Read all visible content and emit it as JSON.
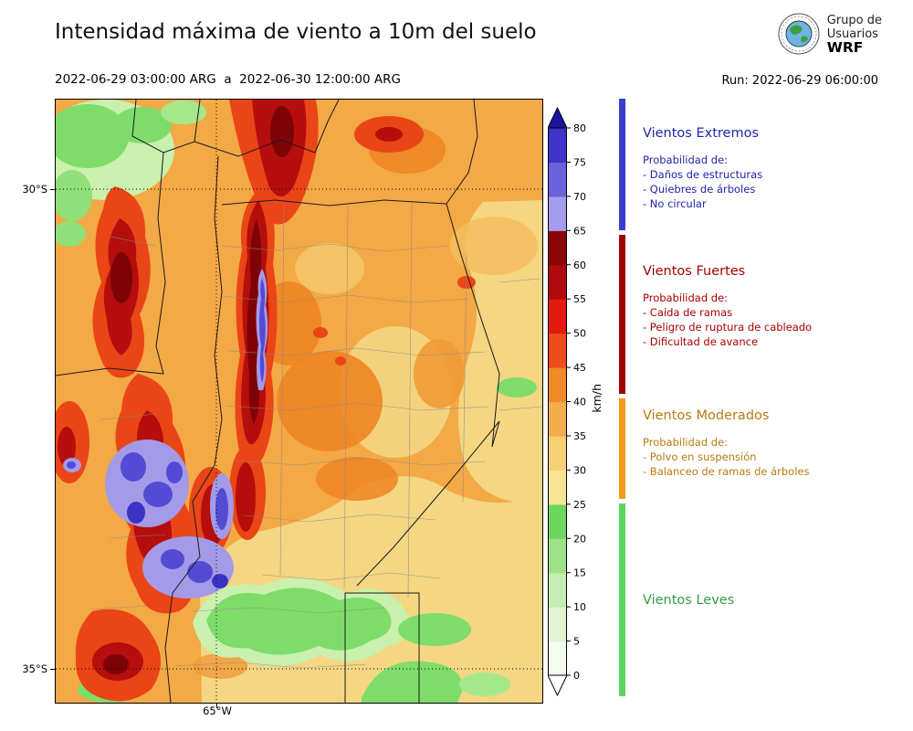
{
  "header": {
    "title": "Intensidad máxima de viento a 10m del suelo",
    "date_range": "2022-06-29 03:00:00 ARG  a  2022-06-30 12:00:00 ARG",
    "run_label": "Run: 2022-06-29 06:00:00",
    "logo": {
      "org_line1": "Grupo de",
      "org_line2": "Usuarios",
      "org_line3": "WRF"
    }
  },
  "map": {
    "lat_labels": [
      "30°S",
      "35°S"
    ],
    "lon_label": "65°W"
  },
  "colorbar": {
    "unit": "km/h",
    "ticks": [
      0,
      5,
      10,
      15,
      20,
      25,
      30,
      35,
      40,
      45,
      50,
      55,
      60,
      65,
      70,
      75,
      80
    ],
    "segments_bottom_to_top": [
      {
        "from": 0,
        "to": 5,
        "color": "#f4fbef"
      },
      {
        "from": 5,
        "to": 10,
        "color": "#e2f4d2"
      },
      {
        "from": 10,
        "to": 15,
        "color": "#c5ecb2"
      },
      {
        "from": 15,
        "to": 20,
        "color": "#9fe188"
      },
      {
        "from": 20,
        "to": 25,
        "color": "#6ed55f"
      },
      {
        "from": 25,
        "to": 30,
        "color": "#f8e493"
      },
      {
        "from": 30,
        "to": 35,
        "color": "#f6cf75"
      },
      {
        "from": 35,
        "to": 40,
        "color": "#f4ac4c"
      },
      {
        "from": 40,
        "to": 45,
        "color": "#f18a28"
      },
      {
        "from": 45,
        "to": 50,
        "color": "#ee4e1c"
      },
      {
        "from": 50,
        "to": 55,
        "color": "#e31b0f"
      },
      {
        "from": 55,
        "to": 60,
        "color": "#b10a0c"
      },
      {
        "from": 60,
        "to": 65,
        "color": "#8a0408"
      },
      {
        "from": 65,
        "to": 70,
        "color": "#a49cec"
      },
      {
        "from": 70,
        "to": 75,
        "color": "#6a61dd"
      },
      {
        "from": 75,
        "to": 80,
        "color": "#3d34cb"
      }
    ],
    "over_color": "#1c14a0",
    "under_color": "#ffffff"
  },
  "legend": {
    "sections": [
      {
        "heading": "Vientos Extremos",
        "text_color": "#2323ab",
        "bar_color": "#3c3ccd",
        "subheading": "Probabilidad de:",
        "items": [
          "- Daños de estructuras",
          "- Quiebres de árboles",
          "- No circular"
        ]
      },
      {
        "heading": "Vientos Fuertes",
        "text_color": "#a80000",
        "bar_color": "#9e0105",
        "subheading": "Probabilidad de:",
        "items": [
          "- Caida de ramas",
          "- Peligro de ruptura de cableado",
          "- Dificultad de avance"
        ]
      },
      {
        "heading": "Vientos Moderados",
        "text_color": "#b87a10",
        "bar_color": "#f29c18",
        "subheading": "Probabilidad de:",
        "items": [
          "- Polvo en suspensión",
          "- Balanceo de ramas de árboles"
        ]
      },
      {
        "heading": "Vientos Leves",
        "text_color": "#2f9e44",
        "bar_color": "#5dd65f",
        "subheading": "",
        "items": []
      }
    ]
  }
}
